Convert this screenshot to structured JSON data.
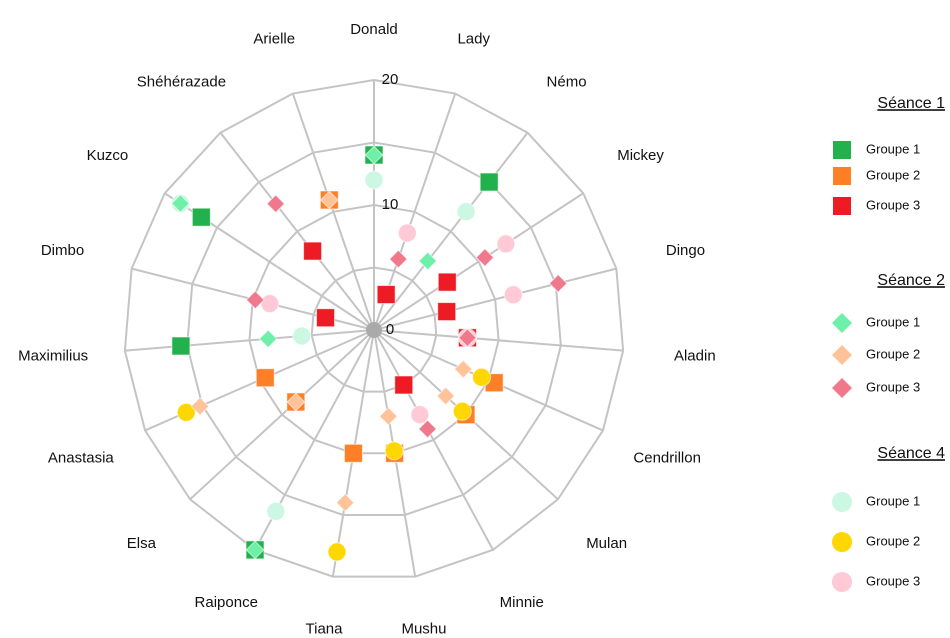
{
  "chart_data": {
    "type": "radar-scatter",
    "categories": [
      "Donald",
      "Lady",
      "Némo",
      "Mickey",
      "Dingo",
      "Aladin",
      "Cendrillon",
      "Mulan",
      "Minnie",
      "Mushu",
      "Tiana",
      "Raiponce",
      "Elsa",
      "Anastasia",
      "Maximilius",
      "Dimbo",
      "Kuzco",
      "Shéhérazade",
      "Arielle"
    ],
    "ylim": [
      0,
      20
    ],
    "yticks": [
      0,
      10,
      20
    ],
    "yminor": [
      5,
      15
    ],
    "grid": true,
    "legend": "right",
    "groups": [
      {
        "name": "Séance 1",
        "marker": "square",
        "series": [
          {
            "name": "Groupe 1",
            "color": "#22b14c",
            "values": [
              14,
              null,
              15,
              null,
              null,
              null,
              null,
              null,
              null,
              null,
              null,
              20,
              null,
              null,
              15.5,
              null,
              16.5,
              null,
              null
            ]
          },
          {
            "name": "Groupe 2",
            "color": "#ff7f27",
            "values": [
              null,
              null,
              null,
              null,
              null,
              null,
              10.5,
              10,
              null,
              10,
              10,
              null,
              8.5,
              9.5,
              null,
              null,
              null,
              null,
              11
            ]
          },
          {
            "name": "Groupe 3",
            "color": "#ed1c24",
            "values": [
              null,
              3,
              null,
              7,
              6,
              7.5,
              null,
              null,
              5,
              null,
              null,
              null,
              null,
              null,
              null,
              4,
              null,
              8,
              null
            ]
          }
        ]
      },
      {
        "name": "Séance 2",
        "marker": "diamond",
        "series": [
          {
            "name": "Groupe 1",
            "color": "#6ef0a8",
            "values": [
              14,
              null,
              7,
              null,
              null,
              null,
              null,
              null,
              null,
              null,
              null,
              20,
              null,
              null,
              8.5,
              null,
              18.5,
              null,
              null
            ]
          },
          {
            "name": "Groupe 2",
            "color": "#ffc299",
            "values": [
              null,
              null,
              null,
              null,
              null,
              null,
              7.8,
              7.8,
              null,
              7,
              14,
              null,
              8.5,
              15.2,
              null,
              null,
              null,
              null,
              11
            ]
          },
          {
            "name": "Groupe 3",
            "color": "#f0788c",
            "values": [
              null,
              6,
              null,
              10.6,
              15.2,
              7.5,
              null,
              null,
              9,
              null,
              null,
              null,
              null,
              null,
              null,
              9.8,
              null,
              12.8,
              null
            ]
          }
        ]
      },
      {
        "name": "Séance 4",
        "marker": "circle",
        "series": [
          {
            "name": "Groupe 1",
            "color": "#ccf7e2",
            "values": [
              12,
              null,
              12,
              null,
              null,
              null,
              null,
              null,
              null,
              null,
              null,
              16.5,
              null,
              null,
              5.8,
              null,
              18.5,
              null,
              null
            ]
          },
          {
            "name": "Groupe 2",
            "color": "#ffd700",
            "values": [
              null,
              null,
              null,
              null,
              null,
              null,
              9.4,
              9.6,
              null,
              9.8,
              18,
              null,
              null,
              16.4,
              null,
              null,
              null,
              null,
              null
            ]
          },
          {
            "name": "Groupe 3",
            "color": "#ffc9d6",
            "values": [
              null,
              8.2,
              null,
              12.6,
              11.5,
              7.5,
              null,
              null,
              7.7,
              null,
              null,
              null,
              null,
              null,
              null,
              8.6,
              null,
              null,
              null
            ]
          }
        ]
      }
    ]
  }
}
